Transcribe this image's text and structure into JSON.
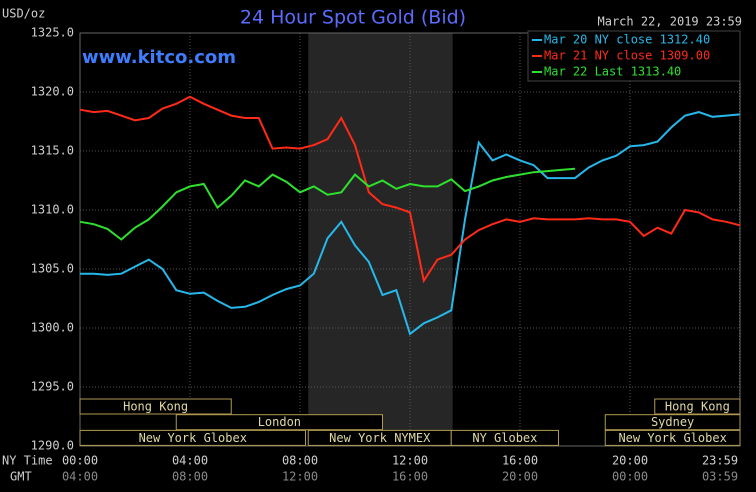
{
  "chart_data": {
    "type": "line",
    "title": "24 Hour Spot Gold (Bid)",
    "date": "March 22, 2019 23:59",
    "site": "www.kitco.com",
    "ylabel": "USD/oz",
    "xlabel": "NY Time",
    "x2label": "GMT",
    "xlim": [
      0,
      24
    ],
    "ylim": [
      1290,
      1325
    ],
    "yticks": [
      {
        "value": 1290,
        "label": "1290.0"
      },
      {
        "value": 1295,
        "label": "1295.0"
      },
      {
        "value": 1300,
        "label": "1300.0"
      },
      {
        "value": 1305,
        "label": "1305.0"
      },
      {
        "value": 1310,
        "label": "1310.0"
      },
      {
        "value": 1315,
        "label": "1315.0"
      },
      {
        "value": 1320,
        "label": "1320.0"
      },
      {
        "value": 1325,
        "label": "1325.0"
      }
    ],
    "xticks": [
      {
        "value": 0,
        "label": "00:00"
      },
      {
        "value": 4,
        "label": "04:00"
      },
      {
        "value": 8,
        "label": "08:00"
      },
      {
        "value": 12,
        "label": "12:00"
      },
      {
        "value": 16,
        "label": "16:00"
      },
      {
        "value": 20,
        "label": "20:00"
      },
      {
        "value": 23.98,
        "label": "23:59"
      }
    ],
    "x2ticks": [
      {
        "value": 0,
        "label": "04:00"
      },
      {
        "value": 4,
        "label": "08:00"
      },
      {
        "value": 8,
        "label": "12:00"
      },
      {
        "value": 12,
        "label": "16:00"
      },
      {
        "value": 16,
        "label": "20:00"
      },
      {
        "value": 20,
        "label": "00:00"
      },
      {
        "value": 23.98,
        "label": "03:59"
      }
    ],
    "grid": true,
    "shaded": [
      8.3,
      13.55
    ],
    "sessions": [
      {
        "name": "Hong Kong",
        "row": 0,
        "start": 0,
        "end": 5.5
      },
      {
        "name": "Hong Kong",
        "row": 0,
        "start": 20.9,
        "end": 24
      },
      {
        "name": "London",
        "row": 1,
        "start": 3.5,
        "end": 11
      },
      {
        "name": "Sydney",
        "row": 1,
        "start": 19.1,
        "end": 24
      },
      {
        "name": "New York Globex",
        "row": 2,
        "start": 0,
        "end": 8.2
      },
      {
        "name": "New York NYMEX",
        "row": 2,
        "start": 8.3,
        "end": 13.5
      },
      {
        "name": "NY Globex",
        "row": 2,
        "start": 13.5,
        "end": 17.4
      },
      {
        "name": "New York Globex",
        "row": 2,
        "start": 19.1,
        "end": 24
      }
    ],
    "x": [
      0,
      0.5,
      1,
      1.5,
      2,
      2.5,
      3,
      3.5,
      4,
      4.5,
      5,
      5.5,
      6,
      6.5,
      7,
      7.5,
      8,
      8.5,
      9,
      9.5,
      10,
      10.5,
      11,
      11.5,
      12,
      12.5,
      13,
      13.5,
      14,
      14.5,
      15,
      15.5,
      16,
      16.5,
      17,
      17.5,
      18,
      18.5,
      19,
      19.5,
      20,
      20.5,
      21,
      21.5,
      22,
      22.5,
      23,
      23.5,
      24
    ],
    "series": [
      {
        "name": "Mar 20 NY close 1312.40",
        "color": "#27b8ea",
        "values": [
          1304.6,
          1304.6,
          1304.5,
          1304.6,
          1305.2,
          1305.8,
          1305.0,
          1303.2,
          1302.9,
          1303.0,
          1302.3,
          1301.7,
          1301.8,
          1302.2,
          1302.8,
          1303.3,
          1303.6,
          1304.6,
          1307.6,
          1309.0,
          1307.0,
          1305.6,
          1302.8,
          1303.2,
          1299.5,
          1300.4,
          1300.9,
          1301.5,
          1309.2,
          1315.7,
          1314.2,
          1314.7,
          1314.2,
          1313.8,
          1312.7,
          1312.7,
          1312.7,
          1313.6,
          1314.2,
          1314.6,
          1315.4,
          1315.5,
          1315.8,
          1317.0,
          1318.0,
          1318.3,
          1317.9,
          1318.0,
          1318.1
        ]
      },
      {
        "name": "Mar 21 NY close 1309.00",
        "color": "#ff2a18",
        "values": [
          1318.5,
          1318.3,
          1318.4,
          1318.0,
          1317.6,
          1317.8,
          1318.6,
          1319.0,
          1319.6,
          1319.0,
          1318.5,
          1318.0,
          1317.8,
          1317.8,
          1315.2,
          1315.3,
          1315.2,
          1315.5,
          1316.0,
          1317.8,
          1315.5,
          1311.5,
          1310.5,
          1310.2,
          1309.8,
          1304.0,
          1305.8,
          1306.2,
          1307.5,
          1308.3,
          1308.8,
          1309.2,
          1309.0,
          1309.3,
          1309.2,
          1309.2,
          1309.2,
          1309.3,
          1309.2,
          1309.2,
          1309.0,
          1307.8,
          1308.5,
          1308.0,
          1310.0,
          1309.8,
          1309.2,
          1309.0,
          1308.7
        ]
      },
      {
        "name": "Mar 22 Last 1313.40",
        "color": "#2ee02e",
        "values": [
          1309.0,
          1308.8,
          1308.4,
          1307.5,
          1308.5,
          1309.2,
          1310.3,
          1311.5,
          1312.0,
          1312.2,
          1310.2,
          1311.2,
          1312.5,
          1312.0,
          1313.0,
          1312.4,
          1311.5,
          1312.0,
          1311.3,
          1311.5,
          1313.0,
          1312.0,
          1312.5,
          1311.8,
          1312.2,
          1312.0,
          1312.0,
          1312.6,
          1311.6,
          1312.0,
          1312.5,
          1312.8,
          1313.0,
          1313.2,
          1313.3,
          1313.4,
          1313.5,
          null,
          null,
          null,
          null,
          null,
          null,
          null,
          null,
          null,
          null,
          null,
          null
        ]
      }
    ]
  }
}
